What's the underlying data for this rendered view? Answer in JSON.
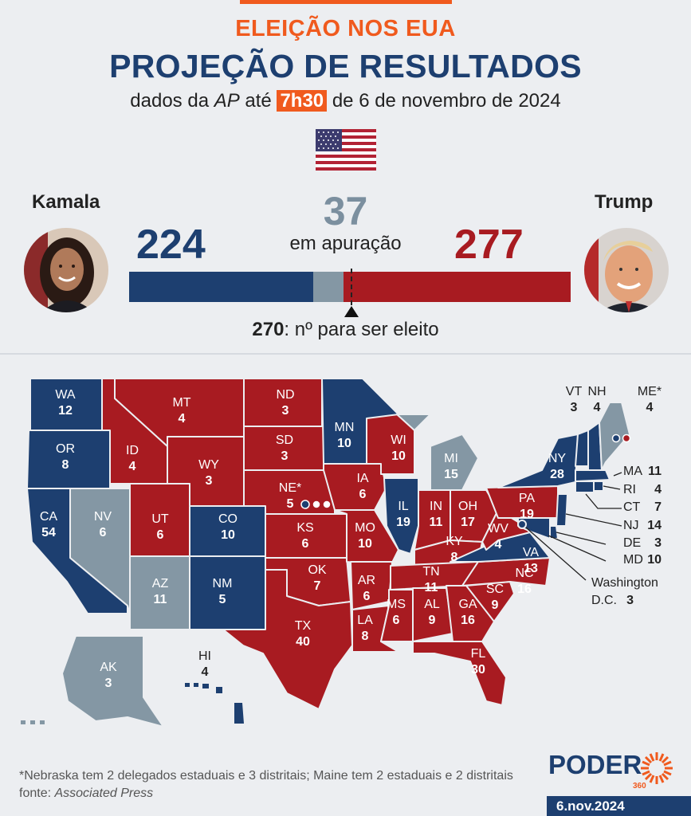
{
  "header": {
    "kicker": "ELEIÇÃO NOS EUA",
    "title": "PROJEÇÃO DE RESULTADOS",
    "subtitle_prefix": "dados da",
    "subtitle_source": "AP",
    "subtitle_mid": "até",
    "subtitle_time": "7h30",
    "subtitle_suffix": "de 6 de novembro de 2024"
  },
  "scoreboard": {
    "kamala": {
      "name": "Kamala",
      "votes": "224",
      "value": 224
    },
    "trump": {
      "name": "Trump",
      "votes": "277",
      "value": 277
    },
    "pending": {
      "count": "37",
      "label": "em apuração",
      "value": 37
    },
    "threshold_value": "270",
    "threshold_text": ": nº para ser eleito",
    "total": 538
  },
  "colors": {
    "dem": "#1d3f70",
    "rep": "#a81b21",
    "pending": "#8497a4",
    "accent": "#f05a1e",
    "background": "#eceef1"
  },
  "states": {
    "WA": {
      "abbr": "WA",
      "votes": "12",
      "status": "dem"
    },
    "OR": {
      "abbr": "OR",
      "votes": "8",
      "status": "dem"
    },
    "CA": {
      "abbr": "CA",
      "votes": "54",
      "status": "dem"
    },
    "NV": {
      "abbr": "NV",
      "votes": "6",
      "status": "pending"
    },
    "ID": {
      "abbr": "ID",
      "votes": "4",
      "status": "rep"
    },
    "MT": {
      "abbr": "MT",
      "votes": "4",
      "status": "rep"
    },
    "WY": {
      "abbr": "WY",
      "votes": "3",
      "status": "rep"
    },
    "UT": {
      "abbr": "UT",
      "votes": "6",
      "status": "rep"
    },
    "CO": {
      "abbr": "CO",
      "votes": "10",
      "status": "dem"
    },
    "AZ": {
      "abbr": "AZ",
      "votes": "11",
      "status": "pending"
    },
    "NM": {
      "abbr": "NM",
      "votes": "5",
      "status": "dem"
    },
    "ND": {
      "abbr": "ND",
      "votes": "3",
      "status": "rep"
    },
    "SD": {
      "abbr": "SD",
      "votes": "3",
      "status": "rep"
    },
    "NE": {
      "abbr": "NE*",
      "votes": "5",
      "status": "rep"
    },
    "KS": {
      "abbr": "KS",
      "votes": "6",
      "status": "rep"
    },
    "OK": {
      "abbr": "OK",
      "votes": "7",
      "status": "rep"
    },
    "TX": {
      "abbr": "TX",
      "votes": "40",
      "status": "rep"
    },
    "MN": {
      "abbr": "MN",
      "votes": "10",
      "status": "dem"
    },
    "IA": {
      "abbr": "IA",
      "votes": "6",
      "status": "rep"
    },
    "MO": {
      "abbr": "MO",
      "votes": "10",
      "status": "rep"
    },
    "AR": {
      "abbr": "AR",
      "votes": "6",
      "status": "rep"
    },
    "LA": {
      "abbr": "LA",
      "votes": "8",
      "status": "rep"
    },
    "WI": {
      "abbr": "WI",
      "votes": "10",
      "status": "rep"
    },
    "IL": {
      "abbr": "IL",
      "votes": "19",
      "status": "dem"
    },
    "MI": {
      "abbr": "MI",
      "votes": "15",
      "status": "pending"
    },
    "IN": {
      "abbr": "IN",
      "votes": "11",
      "status": "rep"
    },
    "OH": {
      "abbr": "OH",
      "votes": "17",
      "status": "rep"
    },
    "KY": {
      "abbr": "KY",
      "votes": "8",
      "status": "rep"
    },
    "TN": {
      "abbr": "TN",
      "votes": "11",
      "status": "rep"
    },
    "MS": {
      "abbr": "MS",
      "votes": "6",
      "status": "rep"
    },
    "AL": {
      "abbr": "AL",
      "votes": "9",
      "status": "rep"
    },
    "GA": {
      "abbr": "GA",
      "votes": "16",
      "status": "rep"
    },
    "FL": {
      "abbr": "FL",
      "votes": "30",
      "status": "rep"
    },
    "SC": {
      "abbr": "SC",
      "votes": "9",
      "status": "rep"
    },
    "NC": {
      "abbr": "NC",
      "votes": "16",
      "status": "rep"
    },
    "VA": {
      "abbr": "VA",
      "votes": "13",
      "status": "dem"
    },
    "WV": {
      "abbr": "WV",
      "votes": "4",
      "status": "rep"
    },
    "PA": {
      "abbr": "PA",
      "votes": "19",
      "status": "rep"
    },
    "NY": {
      "abbr": "NY",
      "votes": "28",
      "status": "dem"
    },
    "VT": {
      "abbr": "VT",
      "votes": "3",
      "status": "dem"
    },
    "NH": {
      "abbr": "NH",
      "votes": "4",
      "status": "dem"
    },
    "ME": {
      "abbr": "ME*",
      "votes": "4",
      "status": "pending"
    },
    "MA": {
      "abbr": "MA",
      "votes": "11",
      "status": "dem"
    },
    "RI": {
      "abbr": "RI",
      "votes": "4",
      "status": "dem"
    },
    "CT": {
      "abbr": "CT",
      "votes": "7",
      "status": "dem"
    },
    "NJ": {
      "abbr": "NJ",
      "votes": "14",
      "status": "dem"
    },
    "DE": {
      "abbr": "DE",
      "votes": "3",
      "status": "dem"
    },
    "MD": {
      "abbr": "MD",
      "votes": "10",
      "status": "dem"
    },
    "DC": {
      "abbr": "Washington",
      "abbr2": "D.C.",
      "votes": "3",
      "status": "dem"
    },
    "AK": {
      "abbr": "AK",
      "votes": "3",
      "status": "pending"
    },
    "HI": {
      "abbr": "HI",
      "votes": "4",
      "status": "dem"
    }
  },
  "footer": {
    "footnote": "*Nebraska tem 2 delegados estaduais e 3 distritais; Maine tem 2 estaduais e 2 distritais",
    "source_prefix": "fonte:",
    "source_name": "Associated Press",
    "logo_text": "PODER",
    "logo_sub": "360",
    "date": "6.nov.2024"
  }
}
